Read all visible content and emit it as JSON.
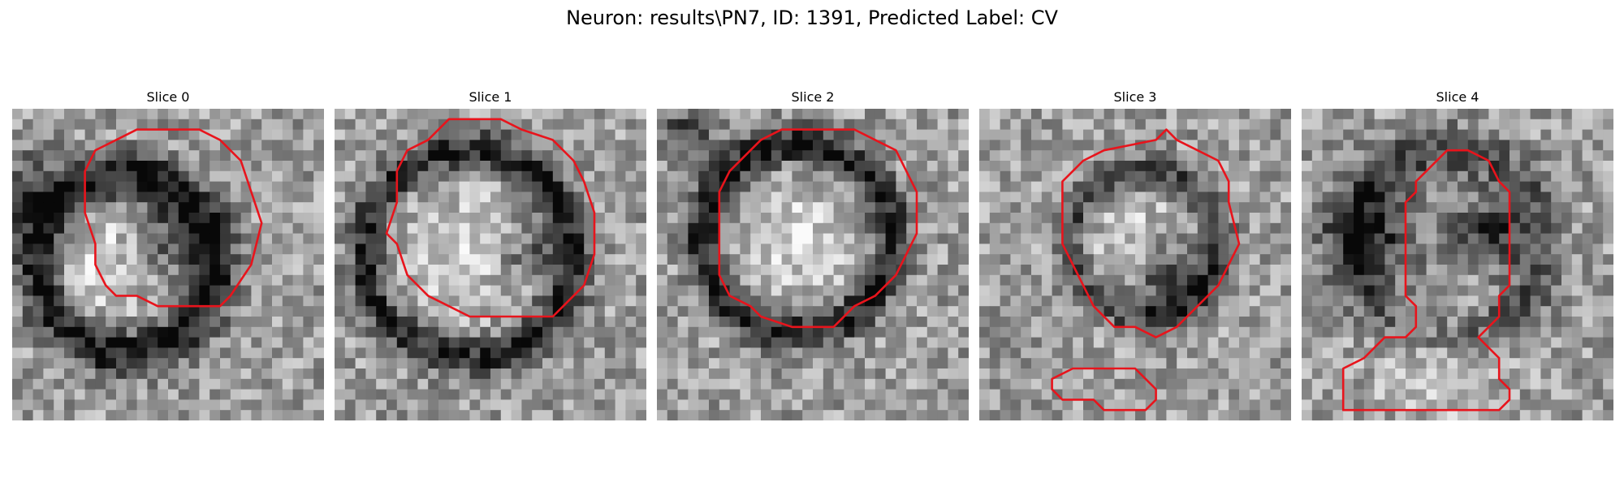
{
  "figure": {
    "title": "Neuron: results\\PN7, ID: 1391, Predicted Label: CV"
  },
  "colors": {
    "contour": "#e8141c"
  },
  "slices": [
    {
      "title": "Slice 0"
    },
    {
      "title": "Slice 1"
    },
    {
      "title": "Slice 2"
    },
    {
      "title": "Slice 3"
    },
    {
      "title": "Slice 4"
    }
  ]
}
